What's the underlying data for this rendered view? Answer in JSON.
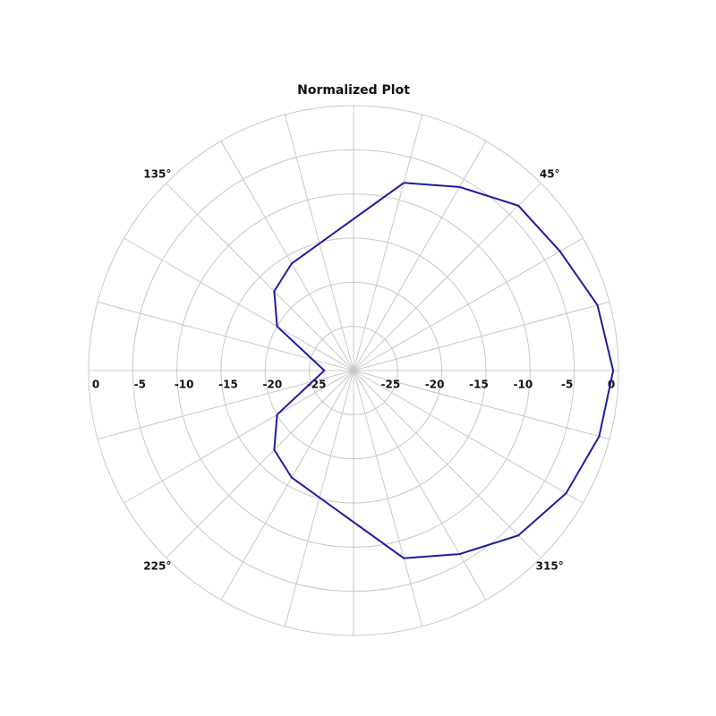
{
  "chart_data": {
    "type": "polar",
    "title": "Normalized Plot",
    "series": [
      {
        "color": "#1c1ca0",
        "x": [
          0,
          15,
          30,
          45,
          60,
          75,
          120,
          135,
          150,
          180,
          210,
          225,
          240,
          285,
          300,
          315,
          330,
          345
        ],
        "values": [
          -0.6,
          -1.4,
          -3,
          -3.6,
          -6,
          -8,
          -16,
          -17.3,
          -20,
          -26.7,
          -20,
          -17.3,
          -16,
          -8,
          -6,
          -3.6,
          -2.2,
          -1.2
        ]
      }
    ],
    "rlim": [
      -30,
      0
    ],
    "rticks": [
      -25,
      -20,
      -15,
      -10,
      -5,
      0
    ],
    "angle_ticks": [
      {
        "value": 45,
        "label": "45°"
      },
      {
        "value": 135,
        "label": "135°"
      },
      {
        "value": 225,
        "label": "225°"
      },
      {
        "value": 315,
        "label": "315°"
      }
    ],
    "grid": true
  }
}
